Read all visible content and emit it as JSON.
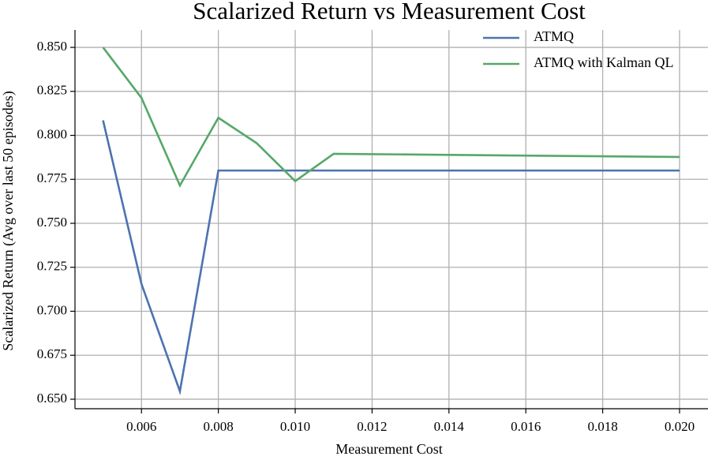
{
  "chart_data": {
    "type": "line",
    "title": "Scalarized Return vs Measurement Cost",
    "x_label": "Measurement Cost",
    "y_label": "Scalarized Return (Avg over last 50 episodes)",
    "x": [
      0.005,
      0.006,
      0.007,
      0.008,
      0.009,
      0.01,
      0.011,
      0.02
    ],
    "series": [
      {
        "name": "ATMQ",
        "color": "#4c72b0",
        "values": [
          0.8085,
          0.7155,
          0.6545,
          0.78,
          0.78,
          0.78,
          0.78,
          0.78
        ]
      },
      {
        "name": "ATMQ with Kalman QL",
        "color": "#55a868",
        "values": [
          0.85,
          0.8213,
          0.7715,
          0.81,
          0.7955,
          0.774,
          0.7895,
          0.7877
        ]
      }
    ],
    "xlim": [
      0.00427,
      0.02074
    ],
    "ylim": [
      0.6446,
      0.8599
    ],
    "xticks": [
      0.006,
      0.008,
      {
        "value": 0.01,
        "label": "0.010"
      },
      0.012,
      0.014,
      0.016,
      0.018,
      {
        "value": 0.02,
        "label": "0.020"
      }
    ],
    "yticks": [
      {
        "value": 0.65,
        "label": "0.650"
      },
      0.675,
      {
        "value": 0.7,
        "label": "0.700"
      },
      0.725,
      {
        "value": 0.75,
        "label": "0.750"
      },
      0.775,
      {
        "value": 0.8,
        "label": "0.800"
      },
      0.825,
      {
        "value": 0.85,
        "label": "0.850"
      }
    ],
    "grid": true,
    "legend": "upper-right"
  }
}
